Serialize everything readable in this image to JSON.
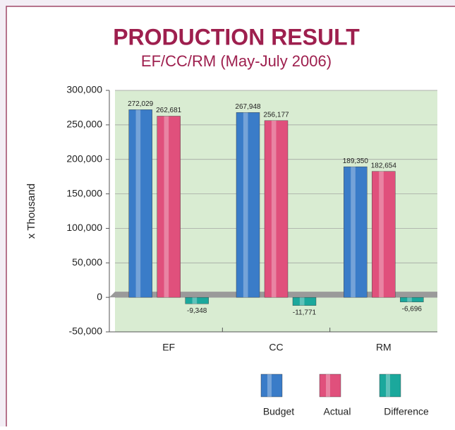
{
  "chart_data": {
    "type": "bar",
    "title": "PRODUCTION RESULT",
    "subtitle": "EF/CC/RM (May-July 2006)",
    "y_label": "x Thousand",
    "categories": [
      "EF",
      "CC",
      "RM"
    ],
    "series": [
      {
        "name": "Budget",
        "color": "#3a7cc8",
        "values": [
          272029,
          267948,
          189350
        ],
        "value_labels": [
          "272,029",
          "267,948",
          "189,350"
        ]
      },
      {
        "name": "Actual",
        "color": "#e0507c",
        "values": [
          262681,
          256177,
          182654
        ],
        "value_labels": [
          "262,681",
          "256,177",
          "182,654"
        ]
      },
      {
        "name": "Difference",
        "color": "#1ba89c",
        "values": [
          -9348,
          -11771,
          -6696
        ],
        "value_labels": [
          "-9,348",
          "-11,771",
          "-6,696"
        ]
      }
    ],
    "ylim": [
      -50000,
      300000
    ],
    "yticks": [
      {
        "value": -50000,
        "label": "-50,000"
      },
      0,
      {
        "value": 50000,
        "label": "50,000"
      },
      {
        "value": 100000,
        "label": "100,000"
      },
      {
        "value": 150000,
        "label": "150,000"
      },
      {
        "value": 200000,
        "label": "200,000"
      },
      {
        "value": 250000,
        "label": "250,000"
      },
      {
        "value": 300000,
        "label": "300,000"
      }
    ],
    "grid": true,
    "legend": "bottom"
  }
}
